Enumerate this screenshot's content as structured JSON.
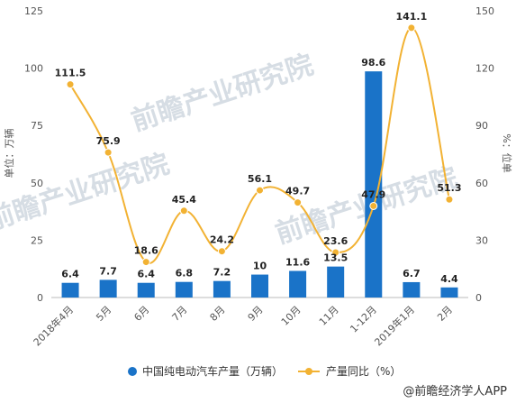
{
  "chart_data": {
    "type": "bar+line",
    "categories": [
      "2018年4月",
      "5月",
      "6月",
      "7月",
      "8月",
      "9月",
      "10月",
      "11月",
      "1-12月",
      "2019年1月",
      "2月"
    ],
    "series": [
      {
        "name": "中国纯电动汽车产量（万辆）",
        "type": "bar",
        "axis": "left",
        "color": "#1a73c8",
        "values": [
          6.4,
          7.7,
          6.4,
          6.8,
          7.2,
          10,
          11.6,
          13.5,
          98.6,
          6.7,
          4.4
        ],
        "labels": [
          "6.4",
          "7.7",
          "6.4",
          "6.8",
          "7.2",
          "10",
          "11.6",
          "13.5",
          "98.6",
          "6.7",
          "4.4"
        ]
      },
      {
        "name": "产量同比（%）",
        "type": "line",
        "axis": "right",
        "color": "#f2b233",
        "values": [
          111.5,
          75.9,
          18.6,
          45.4,
          24.2,
          56.1,
          49.7,
          23.6,
          47.9,
          141.1,
          51.3
        ],
        "labels": [
          "111.5",
          "75.9",
          "18.6",
          "45.4",
          "24.2",
          "56.1",
          "49.7",
          "23.6",
          "47.9",
          "141.1",
          "51.3"
        ]
      }
    ],
    "y_left": {
      "label": "单位：万辆",
      "range": [
        0,
        125
      ],
      "ticks": [
        "0",
        "25",
        "50",
        "75",
        "100",
        "125"
      ]
    },
    "y_right": {
      "label": "%：位单",
      "range": [
        0,
        150
      ],
      "ticks": [
        "0",
        "30",
        "60",
        "90",
        "120",
        "150"
      ]
    },
    "legend_position": "bottom",
    "grid": false
  },
  "source": "@前瞻经济学人APP",
  "watermark_text": "前瞻产业研究院"
}
